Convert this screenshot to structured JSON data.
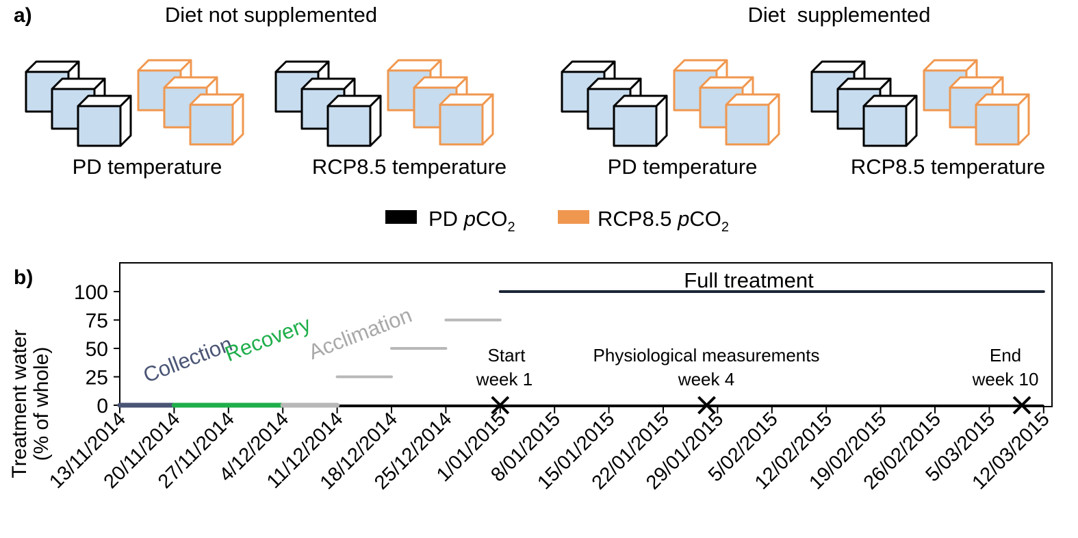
{
  "panel_a": {
    "label": "a)",
    "diet_not_supplemented": "Diet not supplemented",
    "diet_supplemented": "Diet  supplemented",
    "groups": [
      {
        "label": "PD temperature"
      },
      {
        "label": "RCP8.5 temperature"
      },
      {
        "label": "PD temperature"
      },
      {
        "label": "RCP8.5 temperature"
      }
    ],
    "legend": {
      "pd": {
        "prefix": "PD ",
        "italic": "p",
        "co": "CO",
        "sub": "2",
        "color": "#000000"
      },
      "rcp": {
        "prefix": "RCP8.5 ",
        "italic": "p",
        "co": "CO",
        "sub": "2",
        "color": "#f0974f"
      }
    },
    "colors": {
      "tank_face": "#c7dcee",
      "tank_side": "#ffffff",
      "pd_edge": "#000000",
      "rcp_edge": "#f0974f"
    }
  },
  "panel_b": {
    "label": "b)",
    "chart_data": {
      "type": "line",
      "ylabel_line1": "Treatment water",
      "ylabel_line2": "(% of whole)",
      "ylim": [
        0,
        100
      ],
      "yticks": [
        "0",
        "25",
        "50",
        "75",
        "100"
      ],
      "ytick_values": [
        0,
        25,
        50,
        75,
        100
      ],
      "xticks": [
        "13/11/2014",
        "20/11/2014",
        "27/11/2014",
        "4/12/2014",
        "11/12/2014",
        "18/12/2014",
        "25/12/2014",
        "1/01/2015",
        "8/01/2015",
        "15/01/2015",
        "22/01/2015",
        "29/01/2015",
        "5/02/2015",
        "12/02/2015",
        "19/02/2015",
        "26/02/2015",
        "5/03/2015",
        "12/03/2015"
      ],
      "segments": [
        {
          "name": "Collection",
          "start": 0,
          "end": 1,
          "y": 0,
          "color": "#4a5575"
        },
        {
          "name": "Recovery",
          "start": 1,
          "end": 3,
          "y": 0,
          "color": "#1fae4b"
        },
        {
          "name": "Acclimation",
          "start": 3,
          "end": 4,
          "y": 0,
          "color": "#b8b8b8"
        },
        {
          "name": "step-25",
          "start": 4,
          "end": 5,
          "y": 25,
          "color": "#b8b8b8"
        },
        {
          "name": "step-50",
          "start": 5,
          "end": 6,
          "y": 50,
          "color": "#b8b8b8"
        },
        {
          "name": "step-75",
          "start": 6,
          "end": 7,
          "y": 75,
          "color": "#b8b8b8"
        },
        {
          "name": "Full treatment",
          "start": 7,
          "end": 17,
          "y": 100,
          "color": "#1c2535"
        }
      ],
      "phase_labels": [
        {
          "text": "Collection",
          "color": "#4a5575"
        },
        {
          "text": "Recovery",
          "color": "#1fae4b"
        },
        {
          "text": "Acclimation",
          "color": "#a8a8a8"
        },
        {
          "text": "Full treatment",
          "color": "#000000"
        }
      ],
      "markers": [
        {
          "x": 7,
          "line1": "Start",
          "line2": "week 1"
        },
        {
          "x": 10.8,
          "line1": "Physiological measurements",
          "line2": "week 4"
        },
        {
          "x": 16.6,
          "line1": "End",
          "line2": "week 10"
        }
      ]
    }
  }
}
